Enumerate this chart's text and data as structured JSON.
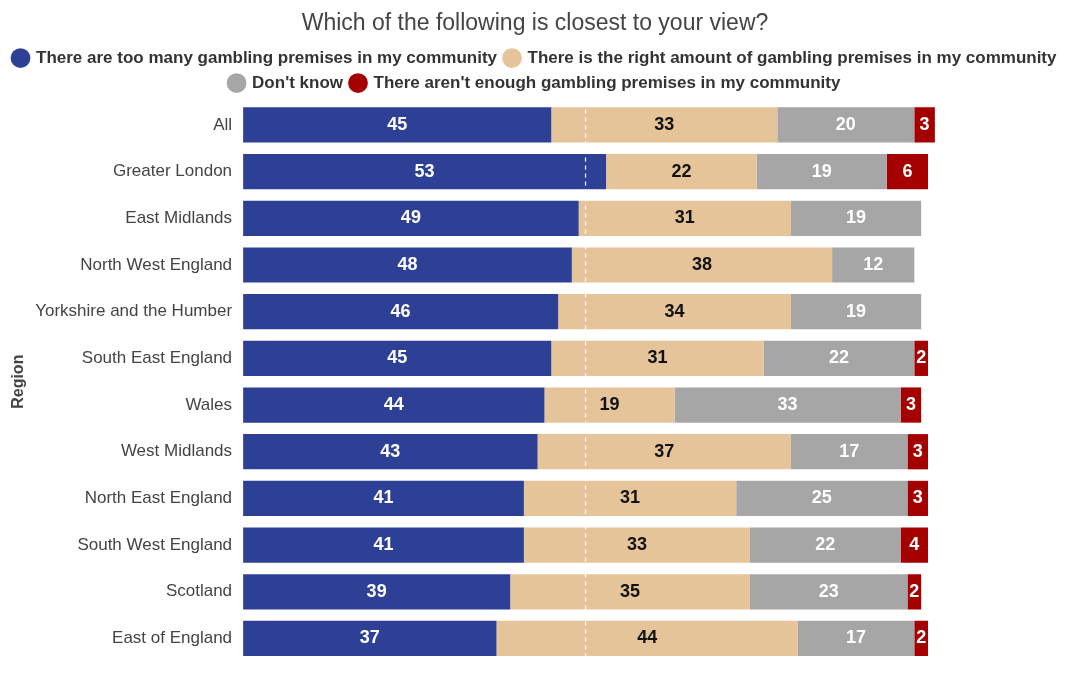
{
  "chart_data": {
    "type": "bar",
    "orientation": "horizontal",
    "stacked": true,
    "title": "Which of the following is closest to your view?",
    "ylabel": "Region",
    "categories": [
      "All",
      "Greater London",
      "East Midlands",
      "North West England",
      "Yorkshire and the Humber",
      "South East England",
      "Wales",
      "West Midlands",
      "North East England",
      "South West England",
      "Scotland",
      "East of England"
    ],
    "series": [
      {
        "name": "There are too many gambling premises in my community",
        "color": "#2e4095",
        "values": [
          45,
          53,
          49,
          48,
          46,
          45,
          44,
          43,
          41,
          41,
          39,
          37
        ]
      },
      {
        "name": "There is the right amount of gambling premises in my community",
        "color": "#e6c49a",
        "values": [
          33,
          22,
          31,
          38,
          34,
          31,
          19,
          37,
          31,
          33,
          35,
          44
        ]
      },
      {
        "name": "Don't know",
        "color": "#a6a6a6",
        "values": [
          20,
          19,
          19,
          12,
          19,
          22,
          33,
          17,
          25,
          22,
          23,
          17
        ]
      },
      {
        "name": "There aren't enough gambling premises in my community",
        "color": "#a50000",
        "values": [
          3,
          6,
          null,
          null,
          null,
          2,
          3,
          3,
          3,
          4,
          2,
          2
        ]
      }
    ],
    "ref_lines": [
      {
        "axis": "x",
        "value": 50,
        "color": "#ffffff",
        "line_style": "dashed"
      }
    ],
    "data_labels": true,
    "legend": "top",
    "tick_labels": "y"
  }
}
